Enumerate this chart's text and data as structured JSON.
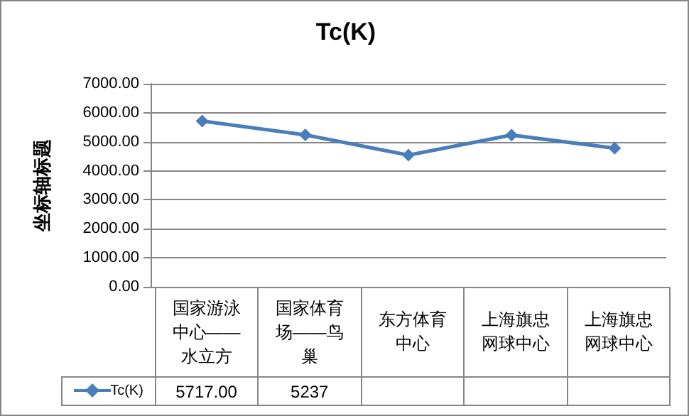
{
  "chart_data": {
    "type": "line",
    "title": "Tc(K)",
    "ylabel": "坐标轴标题",
    "categories": [
      "国家游泳中心——水立方",
      "国家体育场——鸟巢",
      "东方体育中心",
      "上海旗忠网球中心",
      "上海旗忠网球中心"
    ],
    "series": [
      {
        "name": "Tc(K)",
        "color": "#4a7ebb",
        "values": [
          5717,
          5237,
          4540,
          5230,
          4780
        ],
        "value_labels": [
          "5717.00",
          "5237",
          null,
          null,
          null
        ]
      }
    ],
    "ylim": [
      0,
      7000
    ],
    "yticks": [
      {
        "value": 0,
        "label": "0.00"
      },
      {
        "value": 1000,
        "label": "1000.00"
      },
      {
        "value": 2000,
        "label": "2000.00"
      },
      {
        "value": 3000,
        "label": "3000.00"
      },
      {
        "value": 4000,
        "label": "4000.00"
      },
      {
        "value": 5000,
        "label": "5000.00"
      },
      {
        "value": 6000,
        "label": "6000.00"
      },
      {
        "value": 7000,
        "label": "7000.00"
      }
    ],
    "grid": "y",
    "marker": "diamond",
    "line_style": "solid"
  }
}
